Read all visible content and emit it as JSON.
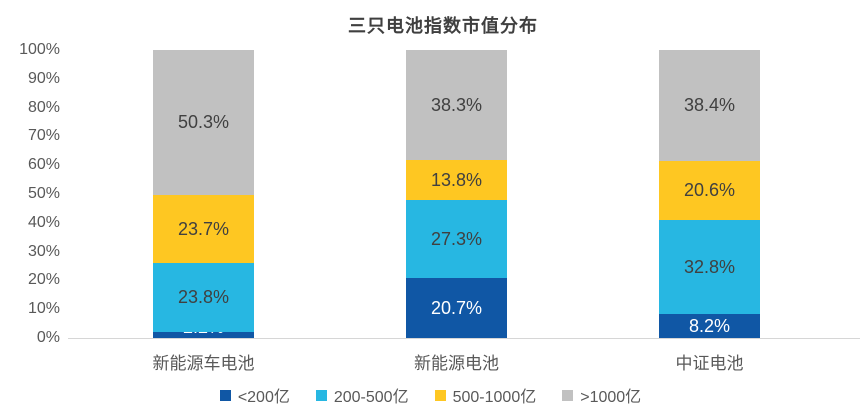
{
  "title": "三只电池指数市值分布",
  "colors": {
    "series_dark_blue": "#1057A5",
    "series_cyan": "#27B7E2",
    "series_yellow": "#FEC722",
    "series_gray": "#C1C1C1",
    "axis_line": "#D6D6D6",
    "axis_text": "#595959",
    "label_dark": "#404040",
    "label_light": "#FFFFFF",
    "title_text": "#3F3F3F"
  },
  "chart_data": {
    "type": "bar",
    "stacked": true,
    "percent_stacked": true,
    "title": "三只电池指数市值分布",
    "xlabel": "",
    "ylabel": "",
    "gridlines": false,
    "legend_position": "bottom",
    "categories": [
      "新能源车电池",
      "新能源电池",
      "中证电池"
    ],
    "series": [
      {
        "name": "<200亿",
        "color": "#1057A5",
        "label_color": "#FFFFFF",
        "values": [
          2.2,
          20.7,
          8.2
        ]
      },
      {
        "name": "200-500亿",
        "color": "#27B7E2",
        "label_color": "#404040",
        "values": [
          23.8,
          27.3,
          32.8
        ]
      },
      {
        "name": "500-1000亿",
        "color": "#FEC722",
        "label_color": "#404040",
        "values": [
          23.7,
          13.8,
          20.6
        ]
      },
      {
        "name": ">1000亿",
        "color": "#C1C1C1",
        "label_color": "#404040",
        "values": [
          50.3,
          38.3,
          38.4
        ]
      }
    ],
    "data_labels": [
      [
        "2.2%",
        "20.7%",
        "8.2%"
      ],
      [
        "23.8%",
        "27.3%",
        "32.8%"
      ],
      [
        "23.7%",
        "13.8%",
        "20.6%"
      ],
      [
        "50.3%",
        "38.3%",
        "38.4%"
      ]
    ],
    "y_axis": {
      "min": 0,
      "max": 100,
      "tick_step": 10,
      "tick_labels": [
        "0%",
        "10%",
        "20%",
        "30%",
        "40%",
        "50%",
        "60%",
        "70%",
        "80%",
        "90%",
        "100%"
      ]
    },
    "legend": [
      "<200亿",
      "200-500亿",
      "500-1000亿",
      ">1000亿"
    ]
  }
}
